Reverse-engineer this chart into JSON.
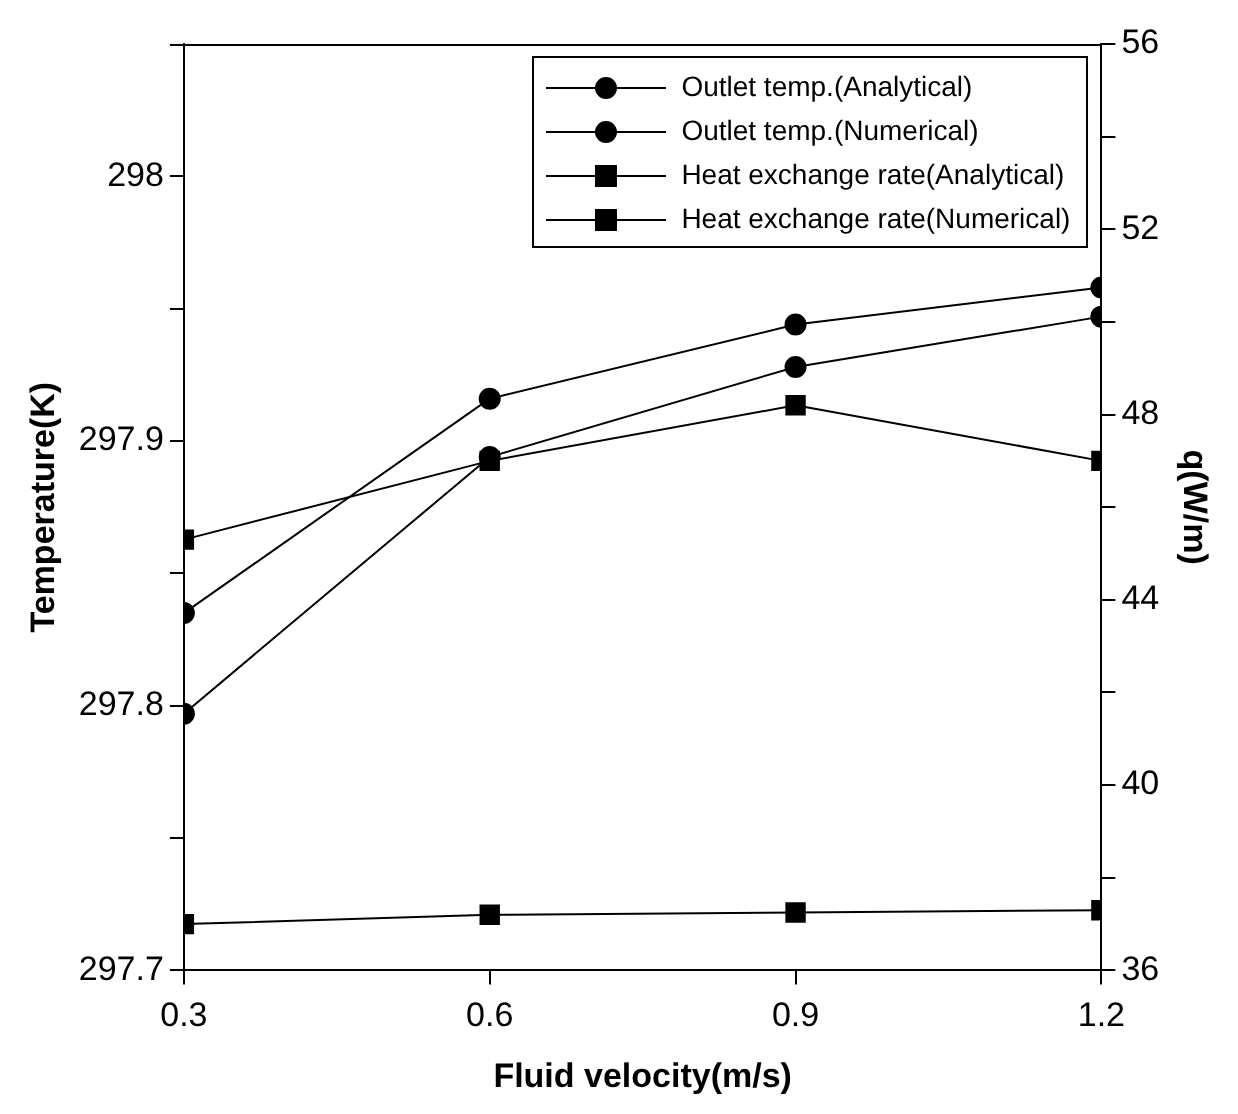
{
  "chart_data": {
    "type": "line",
    "xlabel": "Fluid velocity(m/s)",
    "ylabel": "Temperature(K)",
    "y2label": "q(W/m)",
    "x": [
      0.3,
      0.6,
      0.9,
      1.2
    ],
    "xlim": [
      0.3,
      1.2
    ],
    "xticks": [
      0.3,
      0.6,
      0.9,
      1.2
    ],
    "ylim": [
      297.7,
      298.05
    ],
    "yticks": [
      297.7,
      {
        "value": 297.75,
        "label": null
      },
      297.8,
      {
        "value": 297.85,
        "label": null
      },
      297.9,
      {
        "value": 297.95,
        "label": null
      },
      298
    ],
    "y2lim": [
      36,
      56
    ],
    "y2ticks": [
      36,
      {
        "value": 38,
        "label": null
      },
      40,
      {
        "value": 42,
        "label": null
      },
      44,
      {
        "value": 46,
        "label": null
      },
      48,
      {
        "value": 50,
        "label": null
      },
      52,
      {
        "value": 54,
        "label": null
      },
      56
    ],
    "grid": false,
    "legend": "top right",
    "line_style": "solid",
    "series": [
      {
        "name": "Outlet temp.(Analytical)",
        "color": "#000000",
        "marker": "circle",
        "values": [
          297.835,
          297.916,
          297.944,
          297.958
        ]
      },
      {
        "name": "Outlet temp.(Numerical)",
        "color": "#000000",
        "marker": "circle",
        "values": [
          297.797,
          297.894,
          297.928,
          297.947
        ]
      },
      {
        "name": "Heat exchange rate(Analytical)",
        "color": "#000000",
        "marker": "square",
        "axis": "y2",
        "values": [
          37.0,
          37.2,
          37.25,
          37.3
        ]
      },
      {
        "name": "Heat exchange rate(Numerical)",
        "color": "#000000",
        "marker": "square",
        "axis": "y2",
        "values": [
          45.3,
          47.0,
          48.2,
          47.0
        ]
      }
    ]
  }
}
